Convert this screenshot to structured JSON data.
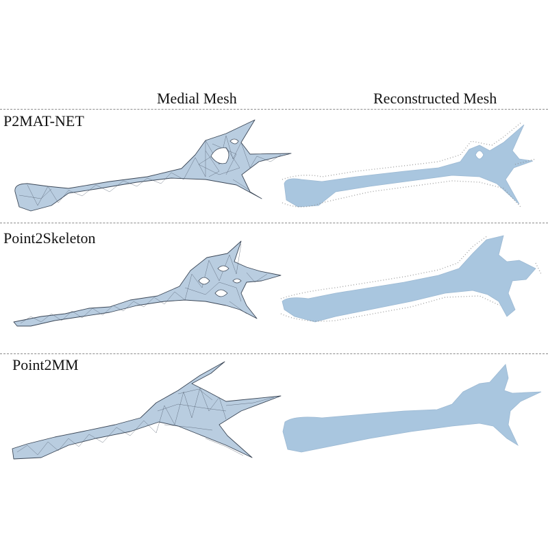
{
  "figure": {
    "columns": {
      "medial": "Medial Mesh",
      "reconstructed": "Reconstructed Mesh"
    },
    "rows": [
      {
        "method": "P2MAT-NET"
      },
      {
        "method": "Point2Skeleton"
      },
      {
        "method": "Point2MM"
      }
    ]
  },
  "colors": {
    "mesh_fill": "#b9cde0",
    "mesh_wire": "#3a4656",
    "recon_fill": "#a9c6df",
    "separator": "#8a8a8a"
  }
}
